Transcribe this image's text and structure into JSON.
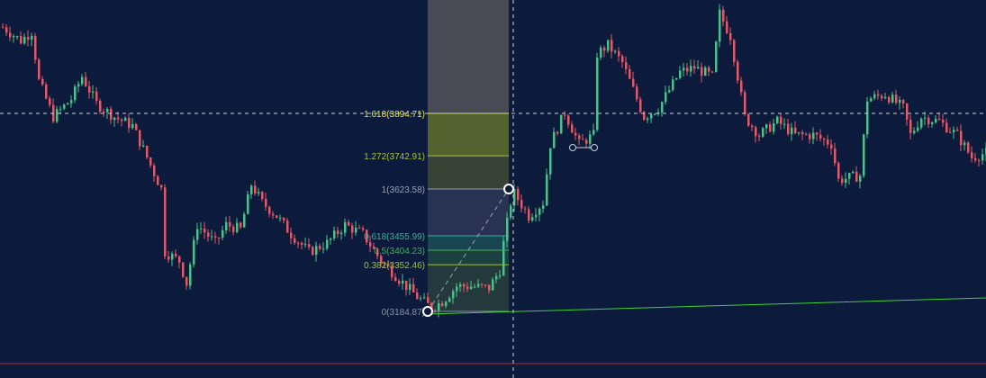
{
  "chart_data": {
    "type": "candlestick",
    "title": "",
    "grid": false,
    "colors": {
      "background": "#0c1a3c",
      "up": "#4fc08d",
      "down": "#e05a6a",
      "trendline": "#3fd13a",
      "crosshair": "#c8cdd8",
      "bottom_line": "#b0283a"
    },
    "price_path": [
      {
        "bar": 0,
        "close": 4204
      },
      {
        "bar": 5,
        "close": 4156
      },
      {
        "bar": 8,
        "close": 4188
      },
      {
        "bar": 10,
        "close": 4011
      },
      {
        "bar": 14,
        "close": 3882
      },
      {
        "bar": 19,
        "close": 3946
      },
      {
        "bar": 22,
        "close": 4027
      },
      {
        "bar": 26,
        "close": 3930
      },
      {
        "bar": 31,
        "close": 3882
      },
      {
        "bar": 36,
        "close": 3850
      },
      {
        "bar": 40,
        "close": 3737
      },
      {
        "bar": 44,
        "close": 3624
      },
      {
        "bar": 45,
        "close": 3398
      },
      {
        "bar": 49,
        "close": 3366
      },
      {
        "bar": 51,
        "close": 3285
      },
      {
        "bar": 54,
        "close": 3495
      },
      {
        "bar": 59,
        "close": 3430
      },
      {
        "bar": 62,
        "close": 3495
      },
      {
        "bar": 66,
        "close": 3479
      },
      {
        "bar": 69,
        "close": 3640
      },
      {
        "bar": 72,
        "close": 3575
      },
      {
        "bar": 76,
        "close": 3527
      },
      {
        "bar": 80,
        "close": 3462
      },
      {
        "bar": 85,
        "close": 3398
      },
      {
        "bar": 90,
        "close": 3430
      },
      {
        "bar": 95,
        "close": 3495
      },
      {
        "bar": 100,
        "close": 3462
      },
      {
        "bar": 105,
        "close": 3366
      },
      {
        "bar": 110,
        "close": 3301
      },
      {
        "bar": 115,
        "close": 3237
      },
      {
        "bar": 119,
        "close": 3198
      },
      {
        "bar": 122,
        "close": 3220
      },
      {
        "bar": 126,
        "close": 3275
      },
      {
        "bar": 130,
        "close": 3275
      },
      {
        "bar": 135,
        "close": 3269
      },
      {
        "bar": 138,
        "close": 3333
      },
      {
        "bar": 139,
        "close": 3430
      },
      {
        "bar": 141,
        "close": 3575
      },
      {
        "bar": 142,
        "close": 3608
      },
      {
        "bar": 146,
        "close": 3527
      },
      {
        "bar": 150,
        "close": 3575
      },
      {
        "bar": 152,
        "close": 3785
      },
      {
        "bar": 156,
        "close": 3898
      },
      {
        "bar": 160,
        "close": 3785
      },
      {
        "bar": 164,
        "close": 3817
      },
      {
        "bar": 165,
        "close": 4108
      },
      {
        "bar": 168,
        "close": 4140
      },
      {
        "bar": 172,
        "close": 4076
      },
      {
        "bar": 178,
        "close": 3882
      },
      {
        "bar": 182,
        "close": 3914
      },
      {
        "bar": 188,
        "close": 4043
      },
      {
        "bar": 192,
        "close": 4059
      },
      {
        "bar": 197,
        "close": 4027
      },
      {
        "bar": 199,
        "close": 4253
      },
      {
        "bar": 202,
        "close": 4172
      },
      {
        "bar": 206,
        "close": 3882
      },
      {
        "bar": 210,
        "close": 3817
      },
      {
        "bar": 215,
        "close": 3866
      },
      {
        "bar": 220,
        "close": 3817
      },
      {
        "bar": 225,
        "close": 3817
      },
      {
        "bar": 230,
        "close": 3785
      },
      {
        "bar": 232,
        "close": 3656
      },
      {
        "bar": 238,
        "close": 3672
      },
      {
        "bar": 240,
        "close": 3946
      },
      {
        "bar": 245,
        "close": 3963
      },
      {
        "bar": 250,
        "close": 3914
      },
      {
        "bar": 252,
        "close": 3817
      },
      {
        "bar": 255,
        "close": 3882
      },
      {
        "bar": 260,
        "close": 3866
      },
      {
        "bar": 265,
        "close": 3817
      },
      {
        "bar": 269,
        "close": 3737
      },
      {
        "bar": 273,
        "close": 3753
      }
    ],
    "fibonacci": {
      "from_price": 3184.87,
      "to_price": 3623.58,
      "levels": [
        {
          "ratio": 1.618,
          "label": "1.618(3894.71)",
          "price": 3894.71,
          "color": "#e8e84a",
          "fill": "#5a6a2c"
        },
        {
          "ratio": 1.272,
          "label": "1.272(3742.91)",
          "price": 3742.91,
          "color": "#a8c040",
          "fill": "#3c4934"
        },
        {
          "ratio": 1,
          "label": "1(3623.58)",
          "price": 3623.58,
          "color": "#9aa0b0",
          "fill": "#2b3655"
        },
        {
          "ratio": 0.618,
          "label": "0.618(3455.99)",
          "price": 3455.99,
          "color": "#3ab0a0",
          "fill": "#184a52"
        },
        {
          "ratio": 0.5,
          "label": "0.5(3404.23)",
          "price": 3404.23,
          "color": "#40b060",
          "fill": "#1c4540"
        },
        {
          "ratio": 0.382,
          "label": "0.382(3352.46)",
          "price": 3352.46,
          "color": "#a0c040",
          "fill": "#263d3c"
        },
        {
          "ratio": 0,
          "label": "0(3184.87)",
          "price": 3184.87,
          "color": "#8a90a0",
          "fill": null
        }
      ],
      "extension_fill": "#4a4a55"
    },
    "crosshair_price": 3894.71
  }
}
